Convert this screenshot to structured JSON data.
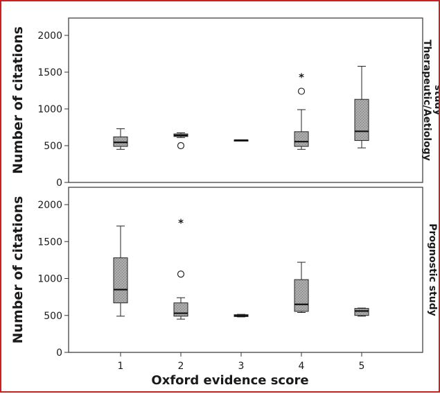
{
  "chart_data": {
    "type": "boxplot",
    "xlabel": "Oxford evidence score",
    "ylabel": "Number of citations",
    "categories": [
      "1",
      "2",
      "3",
      "4",
      "5"
    ],
    "yticks": [
      "0",
      "500",
      "1000",
      "1500",
      "2000"
    ],
    "ylim": [
      0,
      2200
    ],
    "grid": false,
    "panels": [
      {
        "strip": [
          "Therapeutic/Aetiology",
          "study"
        ],
        "boxes": [
          {
            "category": "1",
            "min": 450,
            "q1": 490,
            "median": 545,
            "q3": 620,
            "max": 730
          },
          {
            "category": "2",
            "min": 610,
            "q1": 625,
            "median": 640,
            "q3": 660,
            "max": 675
          },
          {
            "category": "3",
            "min": 575,
            "q1": 575,
            "median": 575,
            "q3": 575,
            "max": 575
          },
          {
            "category": "4",
            "min": 450,
            "q1": 490,
            "median": 555,
            "q3": 690,
            "max": 990
          },
          {
            "category": "5",
            "min": 470,
            "q1": 570,
            "median": 695,
            "q3": 1130,
            "max": 1580
          }
        ],
        "outliers": [
          {
            "category": "2",
            "value": 500,
            "marker": "circle"
          },
          {
            "category": "4",
            "value": 1240,
            "marker": "circle"
          },
          {
            "category": "4",
            "value": 1440,
            "marker": "star"
          }
        ]
      },
      {
        "strip": [
          "Prognostic study"
        ],
        "boxes": [
          {
            "category": "1",
            "min": 490,
            "q1": 670,
            "median": 850,
            "q3": 1280,
            "max": 1710
          },
          {
            "category": "2",
            "min": 450,
            "q1": 490,
            "median": 530,
            "q3": 670,
            "max": 740
          },
          {
            "category": "3",
            "min": 480,
            "q1": 485,
            "median": 495,
            "q3": 510,
            "max": 515
          },
          {
            "category": "4",
            "min": 540,
            "q1": 555,
            "median": 650,
            "q3": 985,
            "max": 1220
          },
          {
            "category": "5",
            "min": 490,
            "q1": 500,
            "median": 560,
            "q3": 595,
            "max": 600
          }
        ],
        "outliers": [
          {
            "category": "2",
            "value": 1060,
            "marker": "circle"
          },
          {
            "category": "2",
            "value": 1760,
            "marker": "star"
          }
        ]
      }
    ]
  }
}
